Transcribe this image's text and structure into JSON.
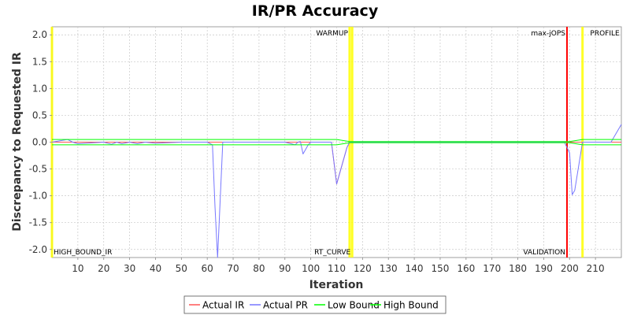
{
  "chart_data": {
    "type": "line",
    "title": "IR/PR Accuracy",
    "xlabel": "Iteration",
    "ylabel": "Discrepancy to Requested IR",
    "xlim": [
      0,
      220
    ],
    "ylim": [
      -2.15,
      2.15
    ],
    "xticks": [
      10,
      20,
      30,
      40,
      50,
      60,
      70,
      80,
      90,
      100,
      110,
      120,
      130,
      140,
      150,
      160,
      170,
      180,
      190,
      200,
      210
    ],
    "xtick_labels": [
      "10",
      "20",
      "30",
      "40",
      "50",
      "60",
      "70",
      "80",
      "90",
      "100",
      "110",
      "120",
      "130",
      "140",
      "150",
      "160",
      "170",
      "180",
      "190",
      "200",
      "210"
    ],
    "yticks": [
      -2.0,
      -1.5,
      -1.0,
      -0.5,
      0.0,
      0.5,
      1.0,
      1.5,
      2.0
    ],
    "ytick_labels": [
      "-2.0",
      "-1.5",
      "-1.0",
      "-0.5",
      "0.0",
      "0.5",
      "1.0",
      "1.5",
      "2.0"
    ],
    "grid": true,
    "legend_position": "bottom",
    "markers": [
      {
        "label": "HIGH_BOUND_IR",
        "x": 0,
        "color": "#ffff00",
        "label_pos": "bottom"
      },
      {
        "label": "WARMUP",
        "x": 115,
        "color": "#ffff00",
        "label_pos": "top"
      },
      {
        "label": "RT_CURVE",
        "x": 116,
        "color": "#ffff00",
        "label_pos": "bottom"
      },
      {
        "label": "max-jOPS",
        "x": 199,
        "color": "#ff0000",
        "label_pos": "top"
      },
      {
        "label": "VALIDATION",
        "x": 199,
        "color": "#ff0000",
        "label_pos": "bottom"
      },
      {
        "label": "PROFILE",
        "x": 205,
        "color": "#ffff00",
        "label_pos": "top"
      }
    ],
    "series": [
      {
        "name": "Actual IR",
        "color": "#ff5555",
        "x": [
          0,
          10,
          20,
          30,
          40,
          50,
          60,
          64,
          66,
          70,
          80,
          90,
          95,
          97,
          100,
          108,
          110,
          114,
          115,
          120,
          140,
          160,
          180,
          198,
          199,
          202,
          205,
          210,
          220
        ],
        "y": [
          0,
          0,
          0,
          0,
          0,
          0,
          0,
          0,
          0,
          0,
          0,
          0,
          0,
          0,
          0,
          0,
          -0.78,
          -0.1,
          0,
          0,
          0,
          0,
          0,
          0,
          0,
          0,
          0,
          0,
          0
        ]
      },
      {
        "name": "Actual PR",
        "color": "#7777ff",
        "x": [
          0,
          6,
          8,
          10,
          20,
          23,
          25,
          27,
          30,
          33,
          36,
          40,
          50,
          60,
          62,
          63,
          64,
          66,
          70,
          80,
          90,
          94,
          95,
          96,
          97,
          99,
          100,
          108,
          110,
          114,
          115,
          120,
          140,
          160,
          180,
          198,
          200,
          201,
          202,
          205,
          210,
          216,
          220
        ],
        "y": [
          0,
          0.05,
          0,
          -0.03,
          0,
          -0.04,
          0,
          -0.03,
          0,
          -0.03,
          0,
          -0.02,
          0,
          0,
          -0.05,
          -1.2,
          -2.15,
          0,
          0,
          0,
          0,
          -0.05,
          0,
          0.01,
          -0.22,
          -0.05,
          0,
          0,
          -0.78,
          -0.1,
          0,
          0,
          0,
          0,
          0,
          0,
          -0.2,
          -0.98,
          -0.9,
          0,
          0,
          0,
          0.33
        ]
      },
      {
        "name": "Low Bound",
        "color": "#00ff00",
        "x": [
          0,
          110,
          115,
          200,
          205,
          220
        ],
        "y": [
          -0.05,
          -0.05,
          -0.01,
          -0.01,
          -0.05,
          -0.05
        ]
      },
      {
        "name": "High Bound",
        "color": "#00ff00",
        "x": [
          0,
          110,
          115,
          200,
          205,
          220
        ],
        "y": [
          0.05,
          0.05,
          0.01,
          0.01,
          0.05,
          0.05
        ]
      }
    ]
  }
}
